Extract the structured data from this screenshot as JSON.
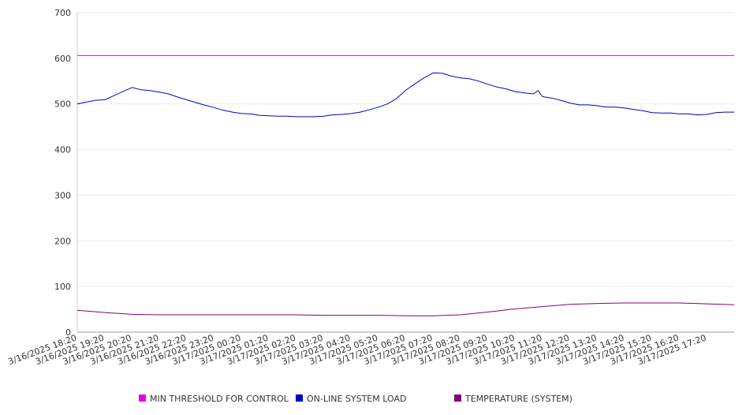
{
  "chart_data": {
    "type": "line",
    "title": "",
    "xlabel": "",
    "ylabel": "",
    "ylim": [
      0,
      700
    ],
    "yticks": [
      0,
      100,
      200,
      300,
      400,
      500,
      600,
      700
    ],
    "grid": true,
    "legend_position": "bottom",
    "x_tick_labels": [
      "3/16/2025 18:20",
      "3/16/2025 19:20",
      "3/16/2025 20:20",
      "3/16/2025 21:20",
      "3/16/2025 22:20",
      "3/16/2025 23:20",
      "3/17/2025 00:20",
      "3/17/2025 01:20",
      "3/17/2025 02:20",
      "3/17/2025 03:20",
      "3/17/2025 04:20",
      "3/17/2025 05:20",
      "3/17/2025 06:20",
      "3/17/2025 07:20",
      "3/17/2025 08:20",
      "3/17/2025 09:20",
      "3/17/2025 10:20",
      "3/17/2025 11:20",
      "3/17/2025 12:20",
      "3/17/2025 13:20",
      "3/17/2025 14:20",
      "3/17/2025 15:20",
      "3/17/2025 16:20",
      "3/17/2025 17:20"
    ],
    "x_range": [
      "3/16/2025 18:20",
      "3/17/2025 18:20"
    ],
    "series": [
      {
        "name": "MIN THRESHOLD FOR CONTROL",
        "color": "#e600e6",
        "points": [
          [
            "3/16/2025 18:20",
            606
          ],
          [
            "3/17/2025 18:20",
            606
          ]
        ]
      },
      {
        "name": "ON-LINE SYSTEM LOAD",
        "color": "#0000cc",
        "points": [
          [
            "3/16/2025 18:20",
            500
          ],
          [
            "3/16/2025 18:40",
            504
          ],
          [
            "3/16/2025 19:00",
            508
          ],
          [
            "3/16/2025 19:20",
            509
          ],
          [
            "3/16/2025 19:40",
            518
          ],
          [
            "3/16/2025 20:00",
            527
          ],
          [
            "3/16/2025 20:20",
            536
          ],
          [
            "3/16/2025 20:40",
            531
          ],
          [
            "3/16/2025 21:00",
            529
          ],
          [
            "3/16/2025 21:20",
            526
          ],
          [
            "3/16/2025 21:40",
            522
          ],
          [
            "3/16/2025 22:00",
            515
          ],
          [
            "3/16/2025 22:20",
            509
          ],
          [
            "3/16/2025 22:40",
            503
          ],
          [
            "3/16/2025 23:00",
            497
          ],
          [
            "3/16/2025 23:20",
            492
          ],
          [
            "3/16/2025 23:40",
            486
          ],
          [
            "3/17/2025 00:00",
            482
          ],
          [
            "3/17/2025 00:20",
            479
          ],
          [
            "3/17/2025 00:40",
            478
          ],
          [
            "3/17/2025 01:00",
            475
          ],
          [
            "3/17/2025 01:20",
            474
          ],
          [
            "3/17/2025 01:40",
            473
          ],
          [
            "3/17/2025 02:00",
            473
          ],
          [
            "3/17/2025 02:20",
            472
          ],
          [
            "3/17/2025 02:40",
            472
          ],
          [
            "3/17/2025 03:00",
            472
          ],
          [
            "3/17/2025 03:20",
            473
          ],
          [
            "3/17/2025 03:40",
            476
          ],
          [
            "3/17/2025 04:00",
            477
          ],
          [
            "3/17/2025 04:20",
            479
          ],
          [
            "3/17/2025 04:40",
            482
          ],
          [
            "3/17/2025 05:00",
            487
          ],
          [
            "3/17/2025 05:20",
            493
          ],
          [
            "3/17/2025 05:40",
            500
          ],
          [
            "3/17/2025 06:00",
            512
          ],
          [
            "3/17/2025 06:20",
            530
          ],
          [
            "3/17/2025 06:40",
            544
          ],
          [
            "3/17/2025 07:00",
            557
          ],
          [
            "3/17/2025 07:20",
            568
          ],
          [
            "3/17/2025 07:40",
            567
          ],
          [
            "3/17/2025 08:00",
            561
          ],
          [
            "3/17/2025 08:20",
            557
          ],
          [
            "3/17/2025 08:40",
            555
          ],
          [
            "3/17/2025 09:00",
            550
          ],
          [
            "3/17/2025 09:20",
            543
          ],
          [
            "3/17/2025 09:40",
            537
          ],
          [
            "3/17/2025 10:00",
            533
          ],
          [
            "3/17/2025 10:20",
            527
          ],
          [
            "3/17/2025 10:40",
            524
          ],
          [
            "3/17/2025 11:00",
            522
          ],
          [
            "3/17/2025 11:10",
            529
          ],
          [
            "3/17/2025 11:20",
            516
          ],
          [
            "3/17/2025 11:40",
            513
          ],
          [
            "3/17/2025 12:00",
            508
          ],
          [
            "3/17/2025 12:20",
            502
          ],
          [
            "3/17/2025 12:40",
            498
          ],
          [
            "3/17/2025 13:00",
            498
          ],
          [
            "3/17/2025 13:20",
            496
          ],
          [
            "3/17/2025 13:40",
            493
          ],
          [
            "3/17/2025 14:00",
            493
          ],
          [
            "3/17/2025 14:20",
            491
          ],
          [
            "3/17/2025 14:40",
            488
          ],
          [
            "3/17/2025 15:00",
            485
          ],
          [
            "3/17/2025 15:20",
            481
          ],
          [
            "3/17/2025 15:40",
            480
          ],
          [
            "3/17/2025 16:00",
            480
          ],
          [
            "3/17/2025 16:20",
            478
          ],
          [
            "3/17/2025 16:40",
            478
          ],
          [
            "3/17/2025 17:00",
            476
          ],
          [
            "3/17/2025 17:20",
            477
          ],
          [
            "3/17/2025 17:40",
            481
          ],
          [
            "3/17/2025 18:00",
            482
          ],
          [
            "3/17/2025 18:20",
            482
          ]
        ]
      },
      {
        "name": "TEMPERATURE (SYSTEM)",
        "color": "#800080",
        "points": [
          [
            "3/16/2025 18:20",
            48
          ],
          [
            "3/16/2025 19:20",
            43
          ],
          [
            "3/16/2025 20:20",
            39
          ],
          [
            "3/16/2025 21:20",
            38
          ],
          [
            "3/16/2025 22:20",
            38
          ],
          [
            "3/16/2025 23:20",
            38
          ],
          [
            "3/17/2025 00:20",
            38
          ],
          [
            "3/17/2025 01:20",
            38
          ],
          [
            "3/17/2025 02:20",
            38
          ],
          [
            "3/17/2025 03:20",
            37
          ],
          [
            "3/17/2025 04:20",
            37
          ],
          [
            "3/17/2025 05:20",
            37
          ],
          [
            "3/17/2025 06:20",
            36
          ],
          [
            "3/17/2025 07:20",
            36
          ],
          [
            "3/17/2025 08:20",
            38
          ],
          [
            "3/17/2025 09:20",
            44
          ],
          [
            "3/17/2025 10:20",
            51
          ],
          [
            "3/17/2025 11:20",
            56
          ],
          [
            "3/17/2025 12:20",
            61
          ],
          [
            "3/17/2025 13:20",
            63
          ],
          [
            "3/17/2025 14:20",
            64
          ],
          [
            "3/17/2025 15:20",
            64
          ],
          [
            "3/17/2025 16:20",
            64
          ],
          [
            "3/17/2025 17:20",
            62
          ],
          [
            "3/17/2025 18:20",
            60
          ]
        ]
      }
    ]
  }
}
